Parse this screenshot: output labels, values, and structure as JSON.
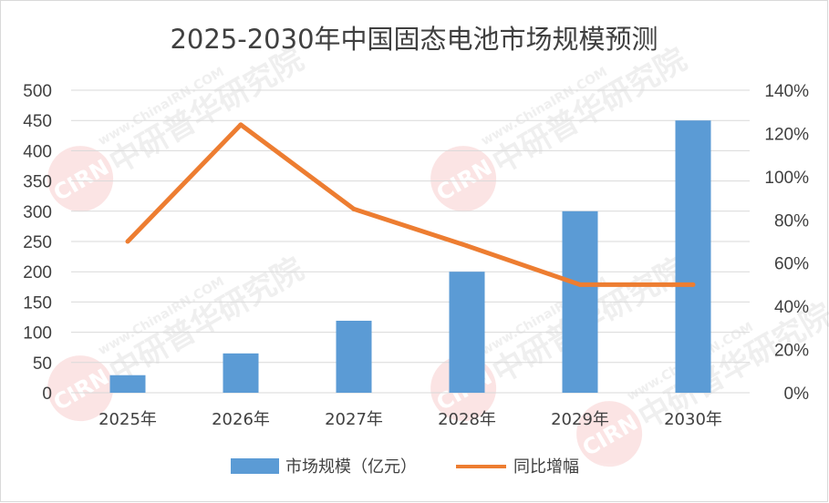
{
  "watermark": {
    "url": "www.ChinaIRN.COM",
    "name": "中研普华研究院",
    "logo": "CIRN"
  },
  "chart_data": {
    "type": "bar",
    "title": "2025-2030年中国固态电池市场规模预测",
    "categories": [
      "2025年",
      "2026年",
      "2027年",
      "2028年",
      "2029年",
      "2030年"
    ],
    "series": [
      {
        "name": "市场规模（亿元）",
        "type": "bar",
        "axis": "left",
        "color": "#5B9BD5",
        "values": [
          29,
          65,
          119,
          200,
          300,
          450
        ]
      },
      {
        "name": "同比增幅",
        "type": "line",
        "axis": "right",
        "color": "#ED7D31",
        "values": [
          0.7,
          1.24,
          0.85,
          0.68,
          0.5,
          0.5
        ]
      }
    ],
    "y_left": {
      "min": 0,
      "max": 500,
      "ticks": [
        "0",
        "50",
        "100",
        "150",
        "200",
        "250",
        "300",
        "350",
        "400",
        "450",
        "500"
      ]
    },
    "y_right": {
      "min": 0,
      "max": 1.4,
      "ticks": [
        "0%",
        "20%",
        "40%",
        "60%",
        "80%",
        "100%",
        "120%",
        "140%"
      ]
    },
    "grid": true,
    "legend_position": "bottom"
  }
}
